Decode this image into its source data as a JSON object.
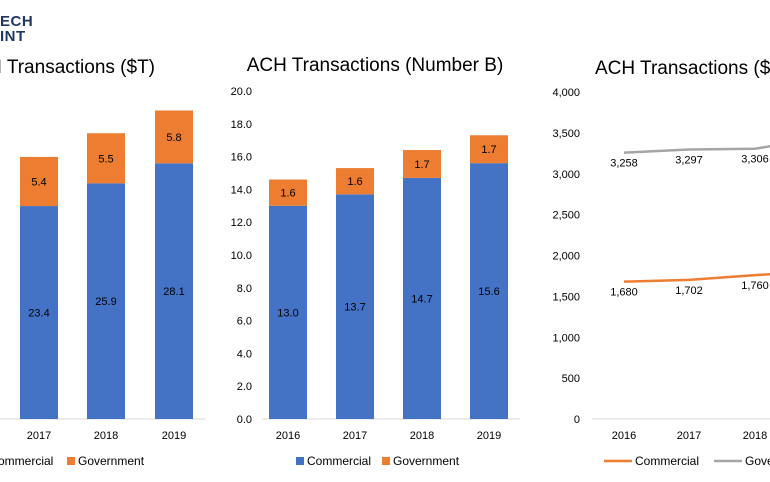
{
  "logo": {
    "line1": "ECH",
    "line2": "INT"
  },
  "chart_data": [
    {
      "type": "bar",
      "stacked": true,
      "title": "H Transactions ($T)",
      "categories": [
        "2017",
        "2018",
        "2019"
      ],
      "series": [
        {
          "name": "Commercial",
          "values": [
            23.4,
            25.9,
            28.1
          ],
          "color": "#4472c4"
        },
        {
          "name": "Government",
          "values": [
            5.4,
            5.5,
            5.8
          ],
          "color": "#ed7d31"
        }
      ],
      "legend": {
        "position": "bottom",
        "entries": [
          "ommercial",
          "Government"
        ]
      }
    },
    {
      "type": "bar",
      "stacked": true,
      "title": "ACH Transactions (Number B)",
      "categories": [
        "2016",
        "2017",
        "2018",
        "2019"
      ],
      "series": [
        {
          "name": "Commercial",
          "values": [
            13.0,
            13.7,
            14.7,
            15.6
          ],
          "color": "#4472c4"
        },
        {
          "name": "Government",
          "values": [
            1.6,
            1.6,
            1.7,
            1.7
          ],
          "color": "#ed7d31"
        }
      ],
      "ylim": [
        0,
        20
      ],
      "yticks": [
        "0.0",
        "2.0",
        "4.0",
        "6.0",
        "8.0",
        "10.0",
        "12.0",
        "14.0",
        "16.0",
        "18.0",
        "20.0"
      ],
      "legend": {
        "position": "bottom",
        "entries": [
          "Commercial",
          "Government"
        ]
      }
    },
    {
      "type": "line",
      "title": "ACH Transactions ($",
      "categories": [
        "2016",
        "2017",
        "2018"
      ],
      "series": [
        {
          "name": "Commercial",
          "values": [
            1680,
            1702,
            1760
          ],
          "labels": [
            "1,680",
            "1,702",
            "1,760"
          ],
          "color": "#ed7d31"
        },
        {
          "name": "Government",
          "values": [
            3258,
            3297,
            3306
          ],
          "labels": [
            "3,258",
            "3,297",
            "3,306"
          ],
          "color": "#a5a5a5"
        }
      ],
      "ylim": [
        0,
        4000
      ],
      "yticks": [
        "0",
        "500",
        "1,000",
        "1,500",
        "2,000",
        "2,500",
        "3,000",
        "3,500",
        "4,000"
      ],
      "legend": {
        "position": "bottom",
        "entries": [
          "Commercial",
          "Gove"
        ]
      }
    }
  ]
}
